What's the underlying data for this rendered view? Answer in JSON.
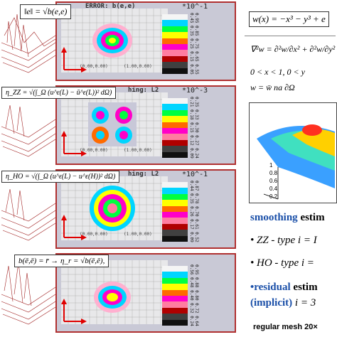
{
  "rows": [
    {
      "formula": "‖e‖ = √b(e,e)",
      "header": "ERROR: b(e,e)",
      "scale": "*10^-1",
      "origin": "(0.00,0.00)",
      "origin2": "(1.00,0.00)",
      "ticks": "0.95 0.85 0.75 0.65 0.55 0.45 0.35 0.25 0.15 0.05"
    },
    {
      "formula": "η_ZZ = √(∫_Ω (u^ε(L) − ū^ε(L))² dΩ)",
      "header": "hing: L2",
      "scale": "*10^-3",
      "origin": "(0.00,0.00)",
      "origin2": "(1.00,0.00)",
      "ticks": "0.35 0.33 0.30 0.27 0.24 0.21 0.18 0.15 0.12 0.09"
    },
    {
      "formula": "η_HO = √(∫_Ω (u^ε(L) − u^ε(H))² dΩ)",
      "header": "hing: L2",
      "scale": "*10^-1",
      "origin": "(0.00,0.00)",
      "origin2": "(1.00,0.00)",
      "ticks": "0.87 0.78 0.70 0.61 0.52 0.44 0.35 0.26 0.17 0.09"
    },
    {
      "formula": "b(ē,ē) = r̄  →  η_r = √b(ē,ē),",
      "header": "",
      "scale": "",
      "origin": "",
      "origin2": "",
      "ticks": "0.95 0.88 0.80 0.72 0.64 0.56 0.48 0.40 0.32 0.24"
    }
  ],
  "right": {
    "eq1": "w(x) = −x³ − y³ + e",
    "eq2": "∇²w = ∂²w/∂x² + ∂²w/∂y²",
    "eq3": "0 < x < 1,   0 < y",
    "eq4": "w = w̄    na   ∂Ω",
    "surface_ticks": [
      "1",
      "0.8",
      "0.6",
      "0.4",
      "0.2"
    ],
    "smoothing_title": "smoothing",
    "smoothing_rest": " estim",
    "zz_line": "• ZZ - type  i = I",
    "ho_line": "• HO - type  i =",
    "residual_title": "•residual",
    "residual_rest": " estim",
    "implicit": "(implicit)",
    "implicit_rest": " i = 3",
    "footer": "regular mesh 20×"
  },
  "legend_colors": [
    "#f5f5f5",
    "#00d5ff",
    "#00ff40",
    "#ffff00",
    "#ff6a00",
    "#ff00c8",
    "#ff7da0",
    "#b00000",
    "#404040",
    "#101010"
  ]
}
